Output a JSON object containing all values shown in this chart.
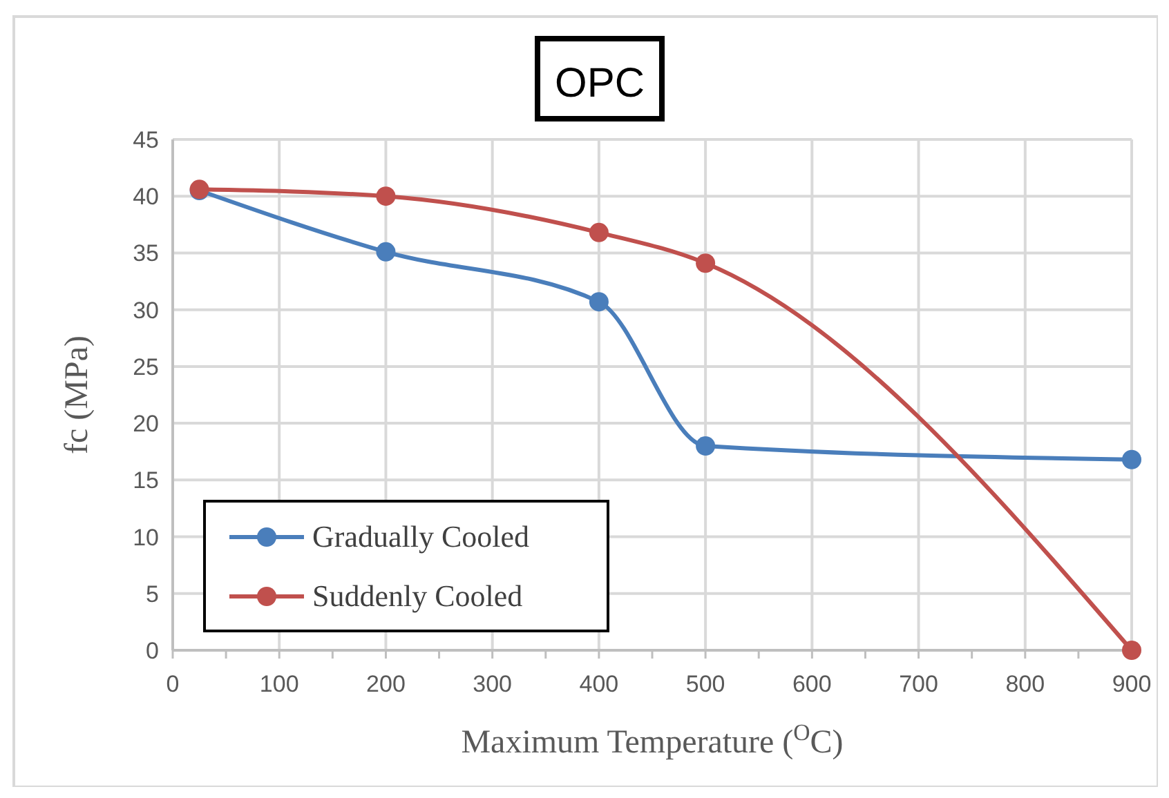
{
  "chart_data": {
    "type": "line",
    "title": "OPC",
    "xlabel": "Maximum  Temperature ($^{O}$C)",
    "ylabel": "fc (MPa)",
    "xlim": [
      0,
      900
    ],
    "xticks": [
      0,
      {
        "value": 50,
        "label": null
      },
      100,
      {
        "value": 150,
        "label": null
      },
      200,
      {
        "value": 250,
        "label": null
      },
      300,
      {
        "value": 350,
        "label": null
      },
      400,
      {
        "value": 450,
        "label": null
      },
      500,
      {
        "value": 550,
        "label": null
      },
      600,
      {
        "value": 650,
        "label": null
      },
      700,
      {
        "value": 750,
        "label": null
      },
      800,
      {
        "value": 850,
        "label": null
      },
      900
    ],
    "ylim": [
      0,
      45
    ],
    "yticks": [
      0,
      5,
      10,
      15,
      20,
      25,
      30,
      35,
      40,
      45
    ],
    "grid": true,
    "legend": "bottom left",
    "marker": "circle",
    "line_style": "solid",
    "series": [
      {
        "name": "Gradually Cooled",
        "color": "#4a7ebb",
        "x": [
          25,
          200,
          400,
          500,
          900
        ],
        "values": [
          40.5,
          35.1,
          30.7,
          18.0,
          16.8
        ]
      },
      {
        "name": "Suddenly Cooled",
        "color": "#c0504d",
        "x": [
          25,
          200,
          400,
          500,
          900
        ],
        "values": [
          40.6,
          40.0,
          36.8,
          34.1,
          0
        ]
      }
    ]
  }
}
